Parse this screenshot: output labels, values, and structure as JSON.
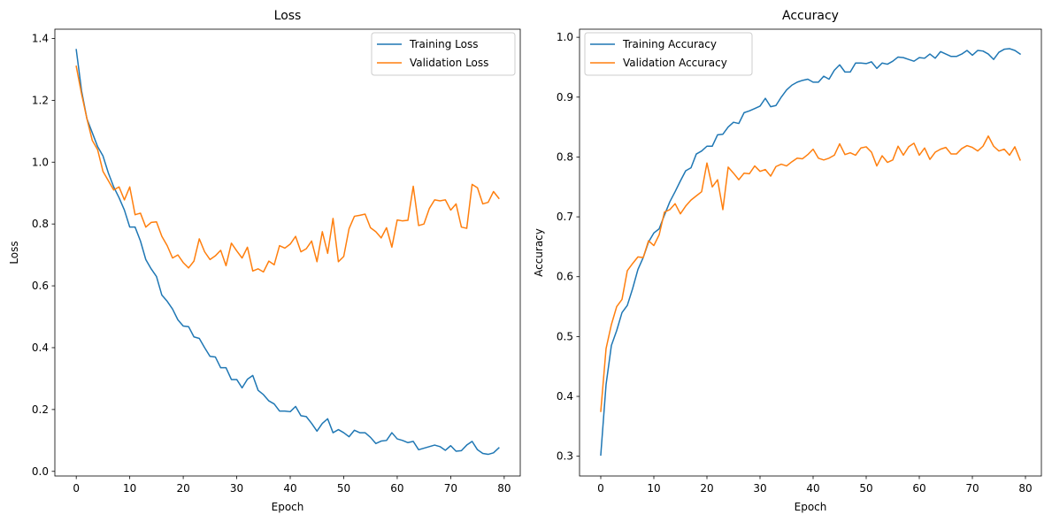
{
  "figure": {
    "background": "#ffffff"
  },
  "chart_data": [
    {
      "type": "line",
      "title": "Loss",
      "xlabel": "Epoch",
      "ylabel": "Loss",
      "xlim": [
        -4,
        83
      ],
      "ylim": [
        -0.015,
        1.43
      ],
      "xticks": [
        0,
        10,
        20,
        30,
        40,
        50,
        60,
        70,
        80
      ],
      "yticks": [
        0.0,
        0.2,
        0.4,
        0.6,
        0.8,
        1.0,
        1.2,
        1.4
      ],
      "ytick_decimals": 1,
      "grid": false,
      "legend_position": "upper right",
      "x": [
        0,
        1,
        2,
        3,
        4,
        5,
        6,
        7,
        8,
        9,
        10,
        11,
        12,
        13,
        14,
        15,
        16,
        17,
        18,
        19,
        20,
        21,
        22,
        23,
        24,
        25,
        26,
        27,
        28,
        29,
        30,
        31,
        32,
        33,
        34,
        35,
        36,
        37,
        38,
        39,
        40,
        41,
        42,
        43,
        44,
        45,
        46,
        47,
        48,
        49,
        50,
        51,
        52,
        53,
        54,
        55,
        56,
        57,
        58,
        59,
        60,
        61,
        62,
        63,
        64,
        65,
        66,
        67,
        68,
        69,
        70,
        71,
        72,
        73,
        74,
        75,
        76,
        77,
        78,
        79
      ],
      "series": [
        {
          "name": "Training Loss",
          "color": "#1f77b4",
          "values": [
            1.364,
            1.23,
            1.14,
            1.095,
            1.05,
            1.02,
            0.965,
            0.92,
            0.885,
            0.845,
            0.79,
            0.79,
            0.745,
            0.685,
            0.655,
            0.63,
            0.57,
            0.55,
            0.525,
            0.49,
            0.47,
            0.468,
            0.435,
            0.43,
            0.4,
            0.372,
            0.37,
            0.335,
            0.335,
            0.297,
            0.297,
            0.27,
            0.298,
            0.31,
            0.262,
            0.248,
            0.228,
            0.218,
            0.195,
            0.195,
            0.193,
            0.21,
            0.18,
            0.177,
            0.155,
            0.13,
            0.155,
            0.17,
            0.125,
            0.135,
            0.125,
            0.112,
            0.133,
            0.125,
            0.125,
            0.11,
            0.09,
            0.098,
            0.1,
            0.125,
            0.105,
            0.1,
            0.093,
            0.097,
            0.07,
            0.075,
            0.08,
            0.085,
            0.08,
            0.068,
            0.083,
            0.065,
            0.067,
            0.085,
            0.097,
            0.07,
            0.058,
            0.055,
            0.06,
            0.076
          ]
        },
        {
          "name": "Validation Loss",
          "color": "#ff7f0e",
          "values": [
            1.31,
            1.22,
            1.14,
            1.07,
            1.04,
            0.97,
            0.94,
            0.91,
            0.92,
            0.878,
            0.92,
            0.83,
            0.835,
            0.79,
            0.805,
            0.807,
            0.76,
            0.73,
            0.69,
            0.7,
            0.675,
            0.658,
            0.68,
            0.752,
            0.71,
            0.685,
            0.697,
            0.715,
            0.665,
            0.738,
            0.713,
            0.69,
            0.725,
            0.648,
            0.655,
            0.645,
            0.68,
            0.668,
            0.73,
            0.722,
            0.735,
            0.76,
            0.71,
            0.72,
            0.745,
            0.678,
            0.775,
            0.705,
            0.818,
            0.678,
            0.695,
            0.785,
            0.825,
            0.828,
            0.832,
            0.788,
            0.775,
            0.755,
            0.788,
            0.725,
            0.813,
            0.81,
            0.812,
            0.922,
            0.795,
            0.8,
            0.85,
            0.878,
            0.875,
            0.878,
            0.845,
            0.865,
            0.79,
            0.786,
            0.928,
            0.917,
            0.865,
            0.87,
            0.905,
            0.883
          ]
        }
      ]
    },
    {
      "type": "line",
      "title": "Accuracy",
      "xlabel": "Epoch",
      "ylabel": "Accuracy",
      "xlim": [
        -4,
        83
      ],
      "ylim": [
        0.267,
        1.0135
      ],
      "xticks": [
        0,
        10,
        20,
        30,
        40,
        50,
        60,
        70,
        80
      ],
      "yticks": [
        0.3,
        0.4,
        0.5,
        0.6,
        0.7,
        0.8,
        0.9,
        1.0
      ],
      "ytick_decimals": 1,
      "grid": false,
      "legend_position": "upper left",
      "x": [
        0,
        1,
        2,
        3,
        4,
        5,
        6,
        7,
        8,
        9,
        10,
        11,
        12,
        13,
        14,
        15,
        16,
        17,
        18,
        19,
        20,
        21,
        22,
        23,
        24,
        25,
        26,
        27,
        28,
        29,
        30,
        31,
        32,
        33,
        34,
        35,
        36,
        37,
        38,
        39,
        40,
        41,
        42,
        43,
        44,
        45,
        46,
        47,
        48,
        49,
        50,
        51,
        52,
        53,
        54,
        55,
        56,
        57,
        58,
        59,
        60,
        61,
        62,
        63,
        64,
        65,
        66,
        67,
        68,
        69,
        70,
        71,
        72,
        73,
        74,
        75,
        76,
        77,
        78,
        79
      ],
      "series": [
        {
          "name": "Training Accuracy",
          "color": "#1f77b4",
          "values": [
            0.302,
            0.42,
            0.485,
            0.51,
            0.54,
            0.552,
            0.58,
            0.612,
            0.632,
            0.658,
            0.673,
            0.68,
            0.703,
            0.725,
            0.742,
            0.76,
            0.777,
            0.782,
            0.805,
            0.81,
            0.818,
            0.818,
            0.837,
            0.838,
            0.85,
            0.858,
            0.856,
            0.874,
            0.877,
            0.881,
            0.885,
            0.898,
            0.884,
            0.886,
            0.9,
            0.912,
            0.92,
            0.925,
            0.928,
            0.93,
            0.925,
            0.925,
            0.935,
            0.93,
            0.945,
            0.954,
            0.942,
            0.942,
            0.957,
            0.957,
            0.956,
            0.959,
            0.948,
            0.957,
            0.955,
            0.96,
            0.967,
            0.966,
            0.963,
            0.96,
            0.966,
            0.965,
            0.972,
            0.965,
            0.976,
            0.972,
            0.968,
            0.968,
            0.972,
            0.978,
            0.97,
            0.978,
            0.977,
            0.972,
            0.963,
            0.975,
            0.98,
            0.981,
            0.978,
            0.972
          ]
        },
        {
          "name": "Validation Accuracy",
          "color": "#ff7f0e",
          "values": [
            0.375,
            0.48,
            0.52,
            0.55,
            0.562,
            0.61,
            0.622,
            0.633,
            0.632,
            0.66,
            0.652,
            0.67,
            0.708,
            0.712,
            0.722,
            0.705,
            0.718,
            0.728,
            0.735,
            0.742,
            0.79,
            0.75,
            0.762,
            0.712,
            0.783,
            0.773,
            0.762,
            0.773,
            0.772,
            0.785,
            0.776,
            0.779,
            0.768,
            0.784,
            0.788,
            0.785,
            0.792,
            0.798,
            0.797,
            0.804,
            0.813,
            0.798,
            0.795,
            0.798,
            0.803,
            0.822,
            0.804,
            0.807,
            0.803,
            0.815,
            0.817,
            0.808,
            0.785,
            0.802,
            0.791,
            0.795,
            0.818,
            0.803,
            0.817,
            0.823,
            0.803,
            0.815,
            0.796,
            0.808,
            0.813,
            0.816,
            0.805,
            0.805,
            0.814,
            0.819,
            0.816,
            0.81,
            0.818,
            0.835,
            0.818,
            0.81,
            0.813,
            0.803,
            0.817,
            0.795
          ]
        }
      ]
    }
  ]
}
